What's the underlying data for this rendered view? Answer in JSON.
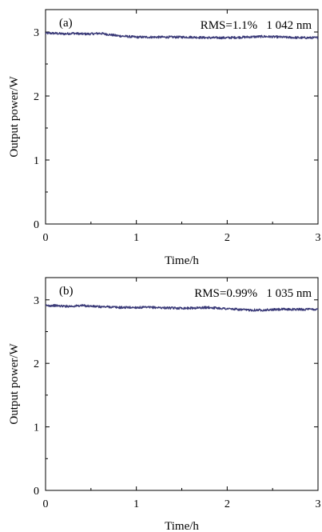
{
  "chart_data": [
    {
      "type": "line",
      "panel_label": "(a)",
      "annotation": "RMS=1.1%   1 042 nm",
      "xlabel": "Time/h",
      "ylabel": "Output power/W",
      "xlim": [
        0,
        3
      ],
      "ylim": [
        0,
        3.35
      ],
      "xticks": [
        "0",
        "1",
        "2",
        "3"
      ],
      "yticks": [
        "0",
        "1",
        "2",
        "3"
      ],
      "line_color": "#3a3a78",
      "series": [
        {
          "x": [
            0,
            0.1,
            0.2,
            0.3,
            0.4,
            0.5,
            0.6,
            0.7,
            0.8,
            0.9,
            1.0,
            1.2,
            1.4,
            1.6,
            1.8,
            2.0,
            2.2,
            2.4,
            2.6,
            2.8,
            3.0
          ],
          "y": [
            2.98,
            2.98,
            2.97,
            2.98,
            2.97,
            2.97,
            2.98,
            2.96,
            2.94,
            2.93,
            2.92,
            2.92,
            2.92,
            2.92,
            2.91,
            2.91,
            2.92,
            2.93,
            2.92,
            2.91,
            2.91
          ]
        }
      ]
    },
    {
      "type": "line",
      "panel_label": "(b)",
      "annotation": "RMS=0.99%   1 035 nm",
      "xlabel": "Time/h",
      "ylabel": "Output power/W",
      "xlim": [
        0,
        3
      ],
      "ylim": [
        0,
        3.35
      ],
      "xticks": [
        "0",
        "1",
        "2",
        "3"
      ],
      "yticks": [
        "0",
        "1",
        "2",
        "3"
      ],
      "line_color": "#3a3a78",
      "series": [
        {
          "x": [
            0,
            0.1,
            0.2,
            0.3,
            0.4,
            0.5,
            0.6,
            0.7,
            0.8,
            0.9,
            1.0,
            1.2,
            1.4,
            1.6,
            1.8,
            2.0,
            2.2,
            2.4,
            2.6,
            2.8,
            3.0
          ],
          "y": [
            2.91,
            2.91,
            2.9,
            2.9,
            2.91,
            2.9,
            2.89,
            2.89,
            2.88,
            2.88,
            2.88,
            2.88,
            2.87,
            2.87,
            2.88,
            2.86,
            2.84,
            2.84,
            2.85,
            2.85,
            2.85
          ]
        }
      ]
    }
  ]
}
